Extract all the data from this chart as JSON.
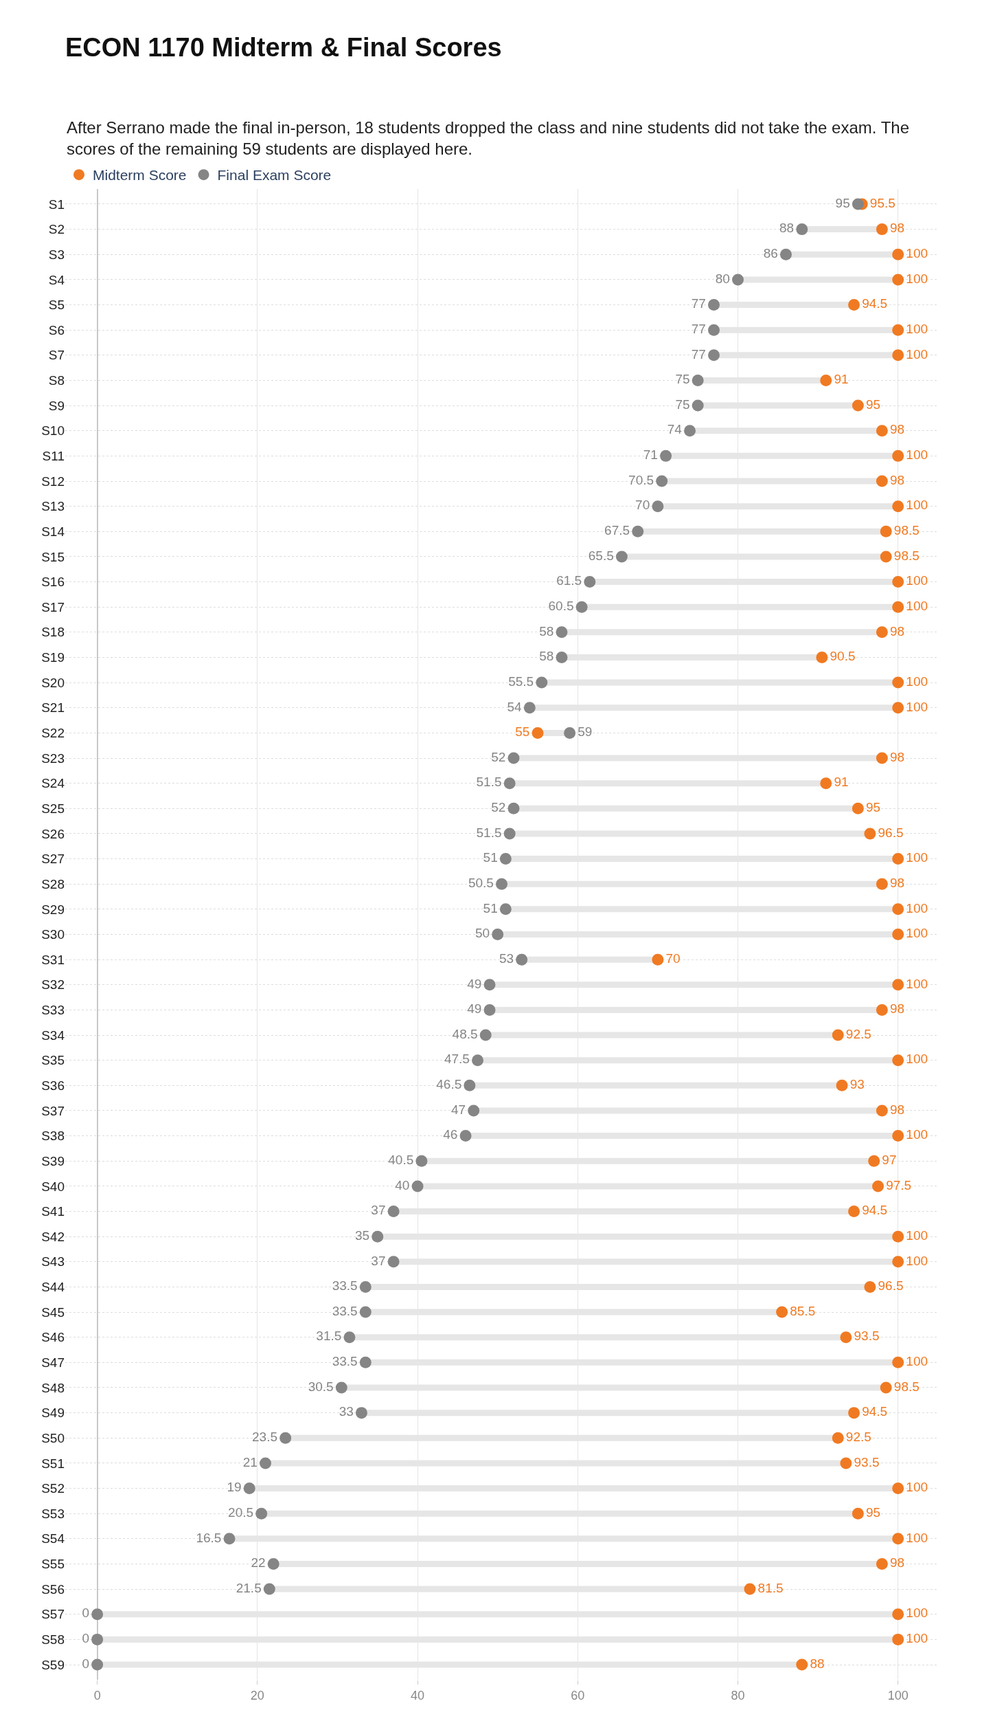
{
  "chart_data": {
    "type": "scatter",
    "orientation": "horizontal",
    "title": "ECON 1170 Midterm & Final Scores",
    "subtitle": "After Serrano made the final in-person, 18 students dropped the class and nine students did not take the exam. The scores of the remaining 59 students are displayed here.",
    "categories": [
      "S1",
      "S2",
      "S3",
      "S4",
      "S5",
      "S6",
      "S7",
      "S8",
      "S9",
      "S10",
      "S11",
      "S12",
      "S13",
      "S14",
      "S15",
      "S16",
      "S17",
      "S18",
      "S19",
      "S20",
      "S21",
      "S22",
      "S23",
      "S24",
      "S25",
      "S26",
      "S27",
      "S28",
      "S29",
      "S30",
      "S31",
      "S32",
      "S33",
      "S34",
      "S35",
      "S36",
      "S37",
      "S38",
      "S39",
      "S40",
      "S41",
      "S42",
      "S43",
      "S44",
      "S45",
      "S46",
      "S47",
      "S48",
      "S49",
      "S50",
      "S51",
      "S52",
      "S53",
      "S54",
      "S55",
      "S56",
      "S57",
      "S58",
      "S59"
    ],
    "series": [
      {
        "name": "Midterm Score",
        "color": "#f07a22",
        "values": [
          95.5,
          98,
          100,
          100,
          94.5,
          100,
          100,
          91,
          95,
          98,
          100,
          98,
          100,
          98.5,
          98.5,
          100,
          100,
          98,
          90.5,
          100,
          100,
          55,
          98,
          91,
          95,
          96.5,
          100,
          98,
          100,
          100,
          70,
          100,
          98,
          92.5,
          100,
          93,
          98,
          100,
          97,
          97.5,
          94.5,
          100,
          100,
          96.5,
          85.5,
          93.5,
          100,
          98.5,
          94.5,
          92.5,
          93.5,
          100,
          95,
          100,
          98,
          81.5,
          100,
          100,
          88
        ]
      },
      {
        "name": "Final Exam Score",
        "color": "#858585",
        "values": [
          95,
          88,
          86,
          80,
          77,
          77,
          77,
          75,
          75,
          74,
          71,
          70.5,
          70,
          67.5,
          65.5,
          61.5,
          60.5,
          58,
          58,
          55.5,
          54,
          59,
          52,
          51.5,
          52,
          51.5,
          51,
          50.5,
          51,
          50,
          53,
          49,
          49,
          48.5,
          47.5,
          46.5,
          47,
          46,
          40.5,
          40,
          37,
          35,
          37,
          33.5,
          33.5,
          31.5,
          33.5,
          30.5,
          33,
          23.5,
          21,
          19,
          20.5,
          16.5,
          22,
          21.5,
          0,
          0,
          0
        ]
      }
    ],
    "xlim": [
      -4,
      105
    ],
    "xticks": [
      0,
      20,
      40,
      60,
      80,
      100
    ],
    "grid": true,
    "legend": "top left",
    "marker": "circle",
    "data_labels": true
  }
}
